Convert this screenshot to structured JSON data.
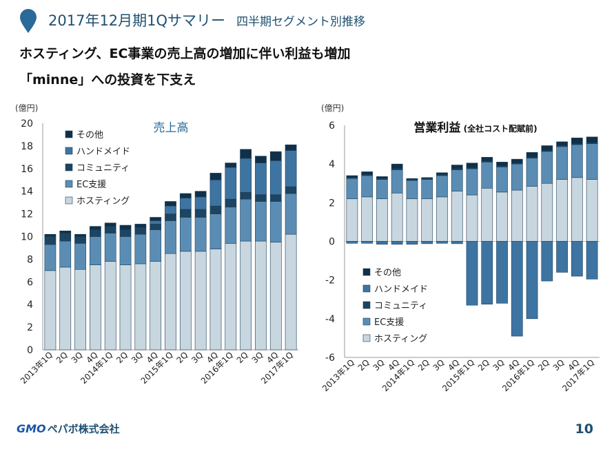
{
  "slide": {
    "title": "2017年12月期1Qサマリー",
    "subtitle": "四半期セグメント別推移",
    "headline_1": "ホスティング、EC事業の売上高の増加に伴い利益も増加",
    "headline_2": "「minne」への投資を下支え",
    "page_number": "10",
    "logo_mark": "GMO",
    "logo_text": "ペパボ株式会社"
  },
  "colors": {
    "title_marker": "#2a6a99",
    "title_text": "#1f5070",
    "axis": "#999999",
    "segments": [
      "#c8d6df",
      "#5b8db4",
      "#1d4460",
      "#3e74a2",
      "#10304a"
    ],
    "edge": "#1d3f58"
  },
  "chart_data": [
    {
      "type": "bar",
      "stacked": true,
      "title": "売上高",
      "subtitle": "",
      "ylabel": "(億円)",
      "ylim": [
        0,
        20
      ],
      "yticks": [
        0,
        2,
        4,
        6,
        8,
        10,
        12,
        14,
        16,
        18,
        20
      ],
      "categories": [
        "2013年1Q",
        "2Q",
        "3Q",
        "4Q",
        "2014年1Q",
        "2Q",
        "3Q",
        "4Q",
        "2015年1Q",
        "2Q",
        "3Q",
        "4Q",
        "2016年1Q",
        "2Q",
        "3Q",
        "4Q",
        "2017年1Q"
      ],
      "legend_position": "top-left",
      "series": [
        {
          "name": "ホスティング",
          "values": [
            7.0,
            7.3,
            7.1,
            7.5,
            7.8,
            7.5,
            7.6,
            7.8,
            8.5,
            8.7,
            8.7,
            8.9,
            9.4,
            9.6,
            9.6,
            9.5,
            10.2
          ]
        },
        {
          "name": "EC支援",
          "values": [
            2.3,
            2.3,
            2.3,
            2.5,
            2.5,
            2.5,
            2.6,
            2.8,
            2.9,
            3.0,
            3.0,
            3.1,
            3.2,
            3.7,
            3.5,
            3.6,
            3.6
          ]
        },
        {
          "name": "コミュニティ",
          "values": [
            0.7,
            0.7,
            0.6,
            0.6,
            0.6,
            0.6,
            0.6,
            0.5,
            0.6,
            0.7,
            0.7,
            0.7,
            0.7,
            0.6,
            0.6,
            0.6,
            0.6
          ]
        },
        {
          "name": "ハンドメイド",
          "values": [
            0,
            0,
            0,
            0,
            0,
            0,
            0,
            0.3,
            0.7,
            1.0,
            1.1,
            2.3,
            2.8,
            3.0,
            2.8,
            3.0,
            3.2
          ]
        },
        {
          "name": "その他",
          "values": [
            0.2,
            0.2,
            0.2,
            0.3,
            0.3,
            0.4,
            0.3,
            0.3,
            0.4,
            0.4,
            0.5,
            0.6,
            0.4,
            0.8,
            0.6,
            0.8,
            0.5
          ]
        }
      ]
    },
    {
      "type": "bar",
      "stacked": true,
      "title": "営業利益",
      "subtitle": "(全社コスト配賦前)",
      "ylabel": "(億円)",
      "ylim": [
        -6,
        6
      ],
      "yticks": [
        -6,
        -4,
        -2,
        0,
        2,
        4,
        6
      ],
      "categories": [
        "2013年1Q",
        "2Q",
        "3Q",
        "4Q",
        "2014年1Q",
        "2Q",
        "3Q",
        "4Q",
        "2015年1Q",
        "2Q",
        "3Q",
        "4Q",
        "2016年1Q",
        "2Q",
        "3Q",
        "4Q",
        "2017年1Q"
      ],
      "legend_position": "bottom-left",
      "series": [
        {
          "name": "ホスティング",
          "values": [
            2.2,
            2.3,
            2.2,
            2.5,
            2.2,
            2.2,
            2.3,
            2.6,
            2.4,
            2.75,
            2.55,
            2.65,
            2.85,
            3.0,
            3.2,
            3.3,
            3.2
          ]
        },
        {
          "name": "EC支援",
          "values": [
            1.05,
            1.1,
            1.0,
            1.2,
            0.95,
            1.0,
            1.1,
            1.1,
            1.35,
            1.35,
            1.3,
            1.35,
            1.45,
            1.65,
            1.7,
            1.7,
            1.85
          ]
        },
        {
          "name": "コミュニティ",
          "values": [
            0.05,
            0.05,
            0.05,
            0.05,
            0.05,
            0.05,
            0.05,
            0.05,
            0.05,
            0.05,
            0.05,
            0.05,
            0.05,
            0.05,
            0.05,
            0.05,
            0.05
          ]
        },
        {
          "name": "ハンドメイド",
          "values": [
            -0.1,
            -0.1,
            -0.15,
            -0.15,
            -0.15,
            -0.12,
            -0.1,
            -0.12,
            -3.3,
            -3.25,
            -3.2,
            -4.9,
            -4.0,
            -2.05,
            -1.6,
            -1.8,
            -1.95
          ]
        },
        {
          "name": "その他",
          "values": [
            0.1,
            0.15,
            0.1,
            0.25,
            0.05,
            0.05,
            0.1,
            0.2,
            0.25,
            0.2,
            0.2,
            0.2,
            0.25,
            0.25,
            0.2,
            0.3,
            0.3
          ]
        }
      ]
    }
  ]
}
